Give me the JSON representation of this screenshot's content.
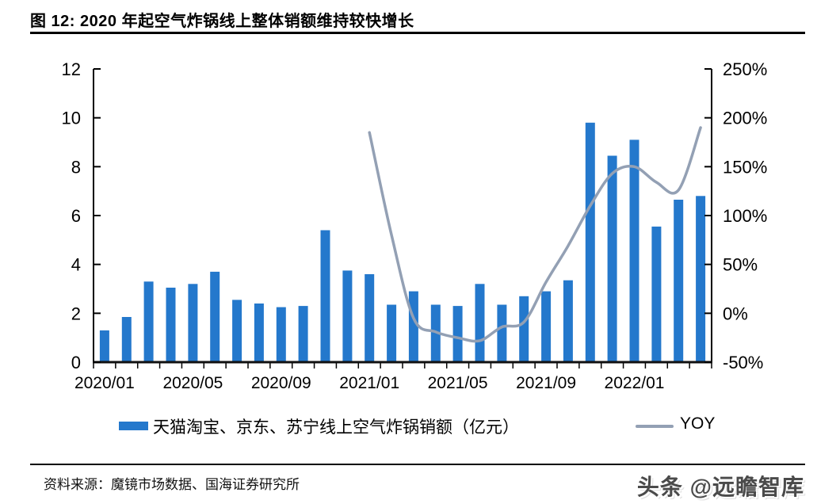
{
  "header": {
    "title": "图 12:  2020 年起空气炸锅线上整体销额维持较快增长"
  },
  "chart_data": {
    "type": "bar+line",
    "categories": [
      "2020/01",
      "2020/02",
      "2020/03",
      "2020/04",
      "2020/05",
      "2020/06",
      "2020/07",
      "2020/08",
      "2020/09",
      "2020/10",
      "2020/11",
      "2020/12",
      "2021/01",
      "2021/02",
      "2021/03",
      "2021/04",
      "2021/05",
      "2021/06",
      "2021/07",
      "2021/08",
      "2021/09",
      "2021/10",
      "2021/11",
      "2021/12",
      "2022/01",
      "2022/02",
      "2022/03",
      "2022/04"
    ],
    "series": [
      {
        "name": "天猫淘宝、京东、苏宁线上空气炸锅销额（亿元）",
        "type": "bar",
        "axis": "left",
        "color": "#2478CC",
        "values": [
          1.3,
          1.85,
          3.3,
          3.05,
          3.2,
          3.7,
          2.55,
          2.4,
          2.25,
          2.3,
          5.4,
          3.75,
          3.6,
          2.35,
          2.9,
          2.35,
          2.3,
          3.2,
          2.35,
          2.7,
          2.9,
          3.35,
          9.8,
          8.45,
          9.1,
          5.55,
          6.65,
          6.8
        ]
      },
      {
        "name": "YOY",
        "type": "line",
        "axis": "right",
        "unit": "%",
        "color": "#93A0B4",
        "values": [
          null,
          null,
          null,
          null,
          null,
          null,
          null,
          null,
          null,
          null,
          null,
          null,
          185,
          80,
          -5,
          -19,
          -25,
          -28,
          -14,
          -9,
          32,
          69,
          110,
          143,
          150,
          134,
          126,
          190
        ]
      }
    ],
    "left_axis": {
      "min": 0,
      "max": 12,
      "tick_labels": [
        "0",
        "2",
        "4",
        "6",
        "8",
        "10",
        "12"
      ]
    },
    "right_axis": {
      "min": -50,
      "max": 250,
      "tick_labels": [
        "-50%",
        "0%",
        "50%",
        "100%",
        "150%",
        "200%",
        "250%"
      ]
    },
    "x_axis": {
      "labels": [
        "2020/01",
        "2020/05",
        "2020/09",
        "2021/01",
        "2021/05",
        "2021/09",
        "2022/01"
      ],
      "label_indices": [
        0,
        4,
        8,
        12,
        16,
        20,
        24
      ]
    },
    "grid": false,
    "legend_position": "bottom"
  },
  "legend": {
    "bar_label": "天猫淘宝、京东、苏宁线上空气炸锅销额（亿元）",
    "line_label": "YOY"
  },
  "footer": {
    "source": "资料来源：魔镜市场数据、国海证券研究所",
    "watermark": "头条 @远瞻智库"
  }
}
